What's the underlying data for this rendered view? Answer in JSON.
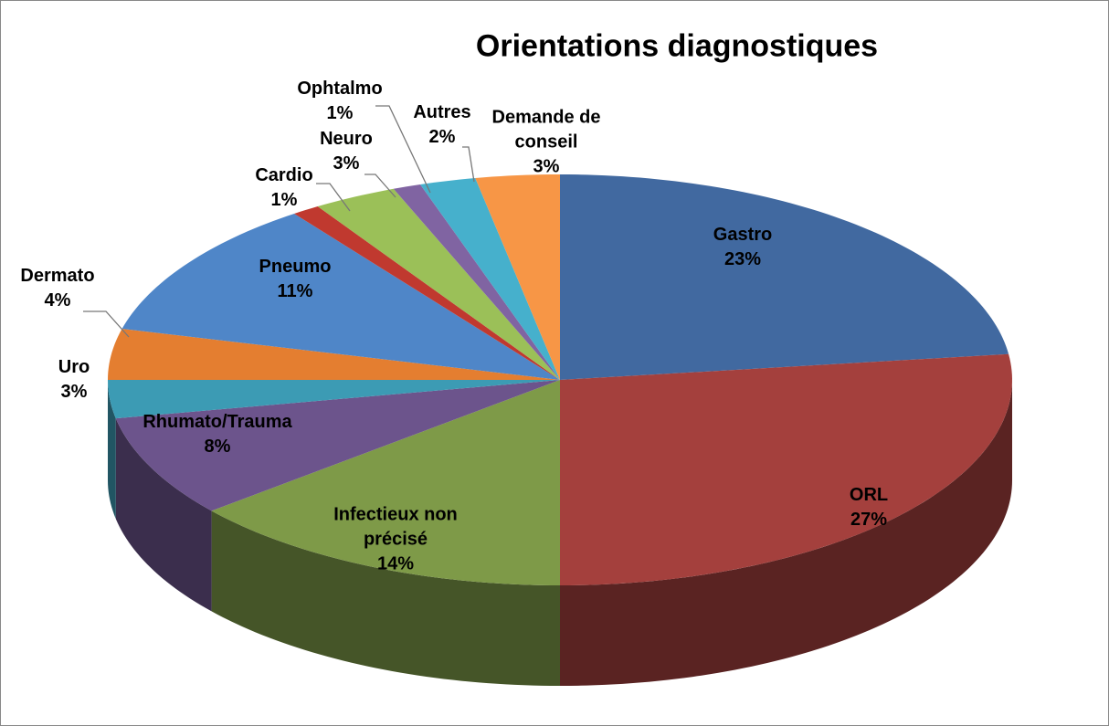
{
  "chart_data": {
    "type": "pie",
    "title": "Orientations diagnostiques",
    "categories": [
      "Gastro",
      "ORL",
      "Infectieux non précisé",
      "Rhumato/Trauma",
      "Uro",
      "Dermato",
      "Pneumo",
      "Cardio",
      "Neuro",
      "Ophtalmo",
      "Autres",
      "Demande de conseil"
    ],
    "values": [
      23,
      27,
      14,
      8,
      3,
      4,
      11,
      1,
      3,
      1,
      2,
      3
    ],
    "value_labels": [
      "23%",
      "27%",
      "14%",
      "8%",
      "3%",
      "4%",
      "11%",
      "1%",
      "3%",
      "1%",
      "2%",
      "3%"
    ],
    "colors": [
      "#4169a0",
      "#a4403d",
      "#7e9a48",
      "#6c548c",
      "#3c9bb4",
      "#e47e30",
      "#4f86c8",
      "#c0392f",
      "#9bc058",
      "#8064a2",
      "#46b0cc",
      "#f79646"
    ]
  }
}
